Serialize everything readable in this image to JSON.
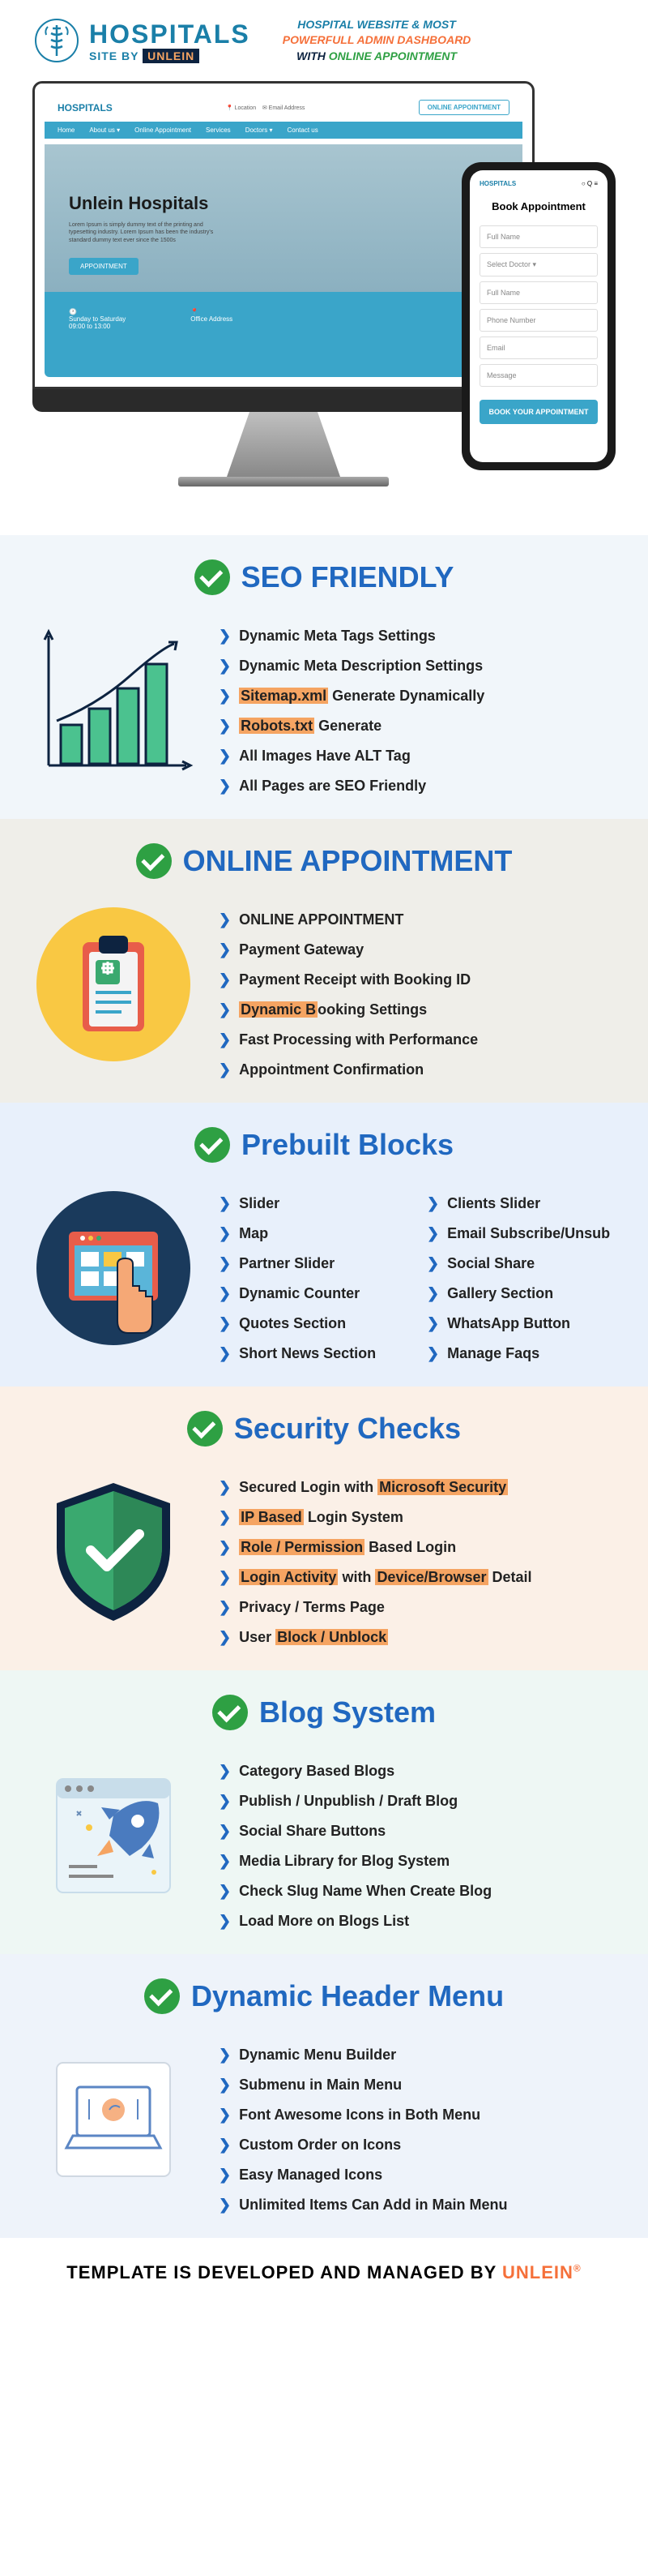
{
  "colors": {
    "primary": "#1a7fa8",
    "accent": "#f5a462",
    "blue": "#2068c0",
    "teal": "#3aa5c9",
    "green": "#2ea043",
    "underline": "#b8dff0"
  },
  "header": {
    "logo_main": "HOSPITALS",
    "logo_main_color": "#1a7fa8",
    "logo_sub_prefix": "SITE BY ",
    "logo_sub_brand": "UNLEIN",
    "logo_sub_brand_bg": "#0d2340",
    "logo_sub_brand_color": "#f5a462",
    "tagline_l1": "HOSPITAL WEBSITE & MOST",
    "tagline_l1_color": "#1a7fa8",
    "tagline_l2": "POWERFULL ADMIN  DASHBOARD",
    "tagline_l2_color": "#f5703a",
    "tagline_l3_prefix": "WITH ",
    "tagline_l3_prefix_color": "#0d2340",
    "tagline_l3_suffix": "ONLINE APPOINTMENT",
    "tagline_l3_suffix_color": "#2ea043"
  },
  "mockup": {
    "desktop": {
      "logo": "HOSPITALS",
      "nav_items": [
        "Home",
        "About us ▾",
        "Online Appointment",
        "Services",
        "Doctors ▾",
        "Contact us"
      ],
      "contact_label1": "Location",
      "contact_label2": "Email Address",
      "appt_button": "ONLINE APPOINTMENT",
      "hero_title": "Unlein Hospitals",
      "hero_sub": "Lorem Ipsum is simply dummy text of the printing and typesetting industry. Lorem Ipsum has been the industry's standard dummy text ever since the 1500s",
      "hero_button": "APPOINTMENT",
      "footer_l": "Sunday to Saturday",
      "footer_l2": "09:00 to 13:00",
      "footer_r": "Office Address"
    },
    "phone": {
      "title": "Book Appointment",
      "fields": [
        "Full Name",
        "Select Doctor ▾",
        "Full Name",
        "Phone Number",
        "Email",
        "Message"
      ],
      "button": "BOOK YOUR APPOINTMENT"
    }
  },
  "sections": [
    {
      "title": "SEO FRIENDLY",
      "title_color": "#2068c0",
      "bg": "#f1f6fa",
      "icon": "chart",
      "items": [
        [
          {
            "t": "Dynamic Meta Tags Settings"
          }
        ],
        [
          {
            "t": "Dynamic Meta Description Settings"
          }
        ],
        [
          {
            "t": "Sitemap.xml",
            "h": true
          },
          {
            "t": " Generate Dynamically"
          }
        ],
        [
          {
            "t": "Robots.txt",
            "h": true
          },
          {
            "t": " Generate"
          }
        ],
        [
          {
            "t": "All Images Have ALT Tag"
          }
        ],
        [
          {
            "t": "All Pages are SEO Friendly"
          }
        ]
      ]
    },
    {
      "title": "ONLINE APPOINTMENT",
      "title_color": "#2068c0",
      "bg": "#efeee9",
      "icon": "clipboard",
      "items": [
        [
          {
            "t": "ONLINE APPOINTMENT"
          }
        ],
        [
          {
            "t": "Payment Gateway"
          }
        ],
        [
          {
            "t": "Payment Receipt with Booking ID"
          }
        ],
        [
          {
            "t": "Dynamic B",
            "h": true
          },
          {
            "t": "ooking Settings"
          }
        ],
        [
          {
            "t": "Fast Processing with Performance"
          }
        ],
        [
          {
            "t": "Appointment Confirmation"
          }
        ]
      ]
    },
    {
      "title": "Prebuilt Blocks",
      "title_color": "#2068c0",
      "bg": "#e8f0fb",
      "icon": "touch",
      "two_col": true,
      "items_left": [
        [
          {
            "t": "Slider"
          }
        ],
        [
          {
            "t": "Map"
          }
        ],
        [
          {
            "t": "Partner Slider"
          }
        ],
        [
          {
            "t": "Dynamic Counter"
          }
        ],
        [
          {
            "t": "Quotes Section"
          }
        ],
        [
          {
            "t": "Short News Section"
          }
        ]
      ],
      "items_right": [
        [
          {
            "t": "Clients Slider"
          }
        ],
        [
          {
            "t": "Email Subscribe/Unsub"
          }
        ],
        [
          {
            "t": "Social Share"
          }
        ],
        [
          {
            "t": "Gallery Section"
          }
        ],
        [
          {
            "t": "WhatsApp Button"
          }
        ],
        [
          {
            "t": "Manage Faqs"
          }
        ]
      ]
    },
    {
      "title": "Security Checks",
      "title_color": "#2068c0",
      "bg": "#fbf0e7",
      "icon": "shield",
      "items": [
        [
          {
            "t": "Secured Login with "
          },
          {
            "t": "Microsoft Security",
            "h": true
          }
        ],
        [
          {
            "t": "IP Based",
            "h": true
          },
          {
            "t": " Login System"
          }
        ],
        [
          {
            "t": "Role / Permission",
            "h": true
          },
          {
            "t": " Based Login"
          }
        ],
        [
          {
            "t": "Login Activity",
            "h": true
          },
          {
            "t": " with "
          },
          {
            "t": "Device/Browser",
            "h": true
          },
          {
            "t": " Detail"
          }
        ],
        [
          {
            "t": "Privacy  / Terms Page"
          }
        ],
        [
          {
            "t": "User "
          },
          {
            "t": "Block / Unblock",
            "h": true
          }
        ]
      ]
    },
    {
      "title": "Blog System",
      "title_color": "#2068c0",
      "bg": "#eef7f4",
      "icon": "rocket",
      "items": [
        [
          {
            "t": "Category Based Blogs"
          }
        ],
        [
          {
            "t": "Publish / Unpublish / Draft Blog"
          }
        ],
        [
          {
            "t": "Social Share Buttons"
          }
        ],
        [
          {
            "t": "Media Library for Blog System"
          }
        ],
        [
          {
            "t": "Check Slug Name When Create Blog"
          }
        ],
        [
          {
            "t": "Load More on Blogs List"
          }
        ]
      ]
    },
    {
      "title": "Dynamic Header Menu",
      "title_color": "#2068c0",
      "bg": "#eef3fa",
      "icon": "laptop",
      "items": [
        [
          {
            "t": "Dynamic Menu Builder"
          }
        ],
        [
          {
            "t": "Submenu in Main Menu"
          }
        ],
        [
          {
            "t": "Font Awesome Icons in Both Menu"
          }
        ],
        [
          {
            "t": "Custom Order on Icons"
          }
        ],
        [
          {
            "t": "Easy Managed Icons"
          }
        ],
        [
          {
            "t": "Unlimited Items Can Add in Main Menu"
          }
        ]
      ]
    }
  ],
  "footer": {
    "prefix": "TEMPLATE IS DEVELOPED AND MANAGED BY ",
    "brand": "UNLEIN",
    "brand_color": "#f5703a",
    "suffix": "®"
  }
}
